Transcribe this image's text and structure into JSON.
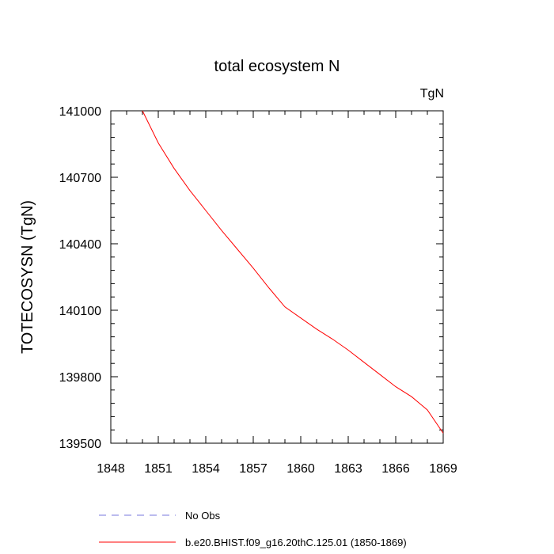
{
  "chart_data": {
    "type": "line",
    "title": "total ecosystem N",
    "units_label": "TgN",
    "ylabel": "TOTECOSYSN  (TgN)",
    "xlabel": "",
    "xlim": [
      1848,
      1869
    ],
    "ylim": [
      139500,
      141000
    ],
    "x_ticks": [
      1848,
      1851,
      1854,
      1857,
      1860,
      1863,
      1866,
      1869
    ],
    "y_ticks": [
      139500,
      139800,
      140100,
      140400,
      140700,
      141000
    ],
    "x_minor_step": 1,
    "y_minor_step": 60,
    "series": [
      {
        "name": "No Obs",
        "color": "#7777dd",
        "dash": "dashed",
        "x": [],
        "values": []
      },
      {
        "name": "b.e20.BHIST.f09_g16.20thC.125.01 (1850-1869)",
        "color": "#ff0000",
        "dash": "solid",
        "x": [
          1850,
          1851,
          1852,
          1853,
          1854,
          1855,
          1856,
          1857,
          1858,
          1859,
          1860,
          1861,
          1862,
          1863,
          1864,
          1865,
          1866,
          1867,
          1868,
          1869
        ],
        "values": [
          141000,
          140855,
          140740,
          140640,
          140550,
          140460,
          140375,
          140290,
          140200,
          140115,
          140065,
          140015,
          139970,
          139920,
          139865,
          139810,
          139755,
          139710,
          139650,
          139545
        ]
      }
    ],
    "legend": [
      "No Obs",
      "b.e20.BHIST.f09_g16.20thC.125.01 (1850-1869)"
    ]
  }
}
